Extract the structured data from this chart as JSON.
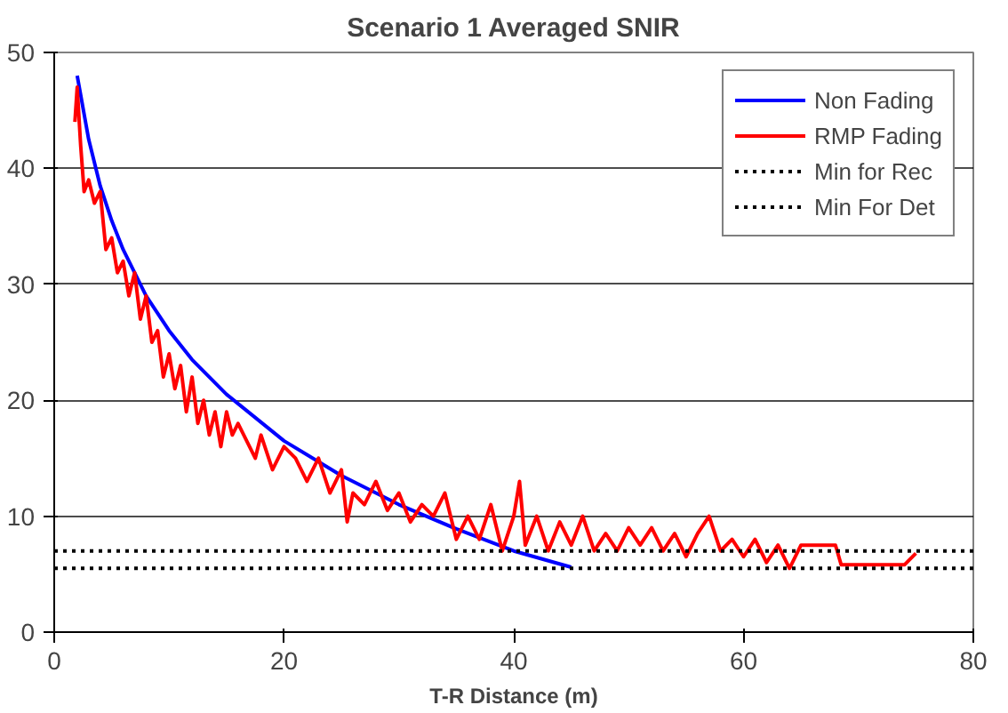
{
  "chart_data": {
    "type": "line",
    "title": "Scenario 1 Averaged SNIR",
    "xlabel": "T-R Distance (m)",
    "xlim": [
      0,
      80
    ],
    "xticks": [
      0,
      20,
      40,
      60,
      80
    ],
    "ylim": [
      0,
      50
    ],
    "yticks": [
      0,
      10,
      20,
      30,
      40,
      50
    ],
    "grid": "y",
    "legend": "top right",
    "marker": "none",
    "series": [
      {
        "name": "Non Fading",
        "color": "#0000ff",
        "line_style": "solid",
        "x": [
          2,
          3,
          4,
          5,
          6,
          8,
          10,
          12,
          15,
          20,
          25,
          30,
          35,
          40,
          45
        ],
        "values": [
          48.0,
          42.5,
          38.5,
          35.5,
          33.0,
          29.0,
          26.0,
          23.5,
          20.5,
          16.5,
          13.5,
          11.0,
          8.9,
          7.0,
          5.6
        ]
      },
      {
        "name": "RMP Fading",
        "color": "#ff0000",
        "line_style": "solid",
        "x": [
          1.8,
          2.0,
          2.3,
          2.6,
          3,
          3.5,
          4,
          4.5,
          5,
          5.5,
          6,
          6.5,
          7,
          7.5,
          8,
          8.5,
          9,
          9.5,
          10,
          10.5,
          11,
          11.5,
          12,
          12.5,
          13,
          13.5,
          14,
          14.5,
          15,
          15.5,
          16,
          17,
          17.5,
          18,
          19,
          20,
          21,
          22,
          23,
          24,
          25,
          25.5,
          26,
          27,
          28,
          29,
          30,
          31,
          32,
          33,
          34,
          35,
          36,
          37,
          38,
          39,
          40,
          40.5,
          41,
          42,
          43,
          44,
          45,
          46,
          47,
          48,
          49,
          50,
          51,
          52,
          53,
          54,
          55,
          56,
          57,
          58,
          59,
          60,
          61,
          62,
          63,
          64,
          65,
          68,
          68.5,
          74,
          75
        ],
        "values": [
          44,
          47,
          42,
          38,
          39,
          37,
          38,
          33,
          34,
          31,
          32,
          29,
          31,
          27,
          29,
          25,
          26,
          22,
          24,
          21,
          23,
          19,
          22,
          18,
          20,
          17,
          19,
          16,
          19,
          17,
          18,
          16,
          15,
          17,
          14,
          16,
          15,
          13,
          15,
          12,
          14,
          9.5,
          12,
          11,
          13,
          10.5,
          12,
          9.5,
          11,
          10,
          12,
          8,
          10,
          8,
          11,
          7,
          10,
          13,
          7.5,
          10,
          7,
          9.5,
          7.5,
          10,
          7,
          8.5,
          7,
          9,
          7.5,
          9,
          7,
          8.5,
          6.5,
          8.5,
          10,
          7,
          8,
          6.5,
          8,
          6,
          7.5,
          5.5,
          7.5,
          7.5,
          5.8,
          5.8,
          6.8
        ]
      },
      {
        "name": "Min for Rec",
        "color": "#000000",
        "line_style": "dotted",
        "x": [
          0,
          80
        ],
        "values": [
          7,
          7
        ]
      },
      {
        "name": "Min For Det",
        "color": "#000000",
        "line_style": "dotted",
        "x": [
          0,
          80
        ],
        "values": [
          5.5,
          5.5
        ]
      }
    ]
  }
}
